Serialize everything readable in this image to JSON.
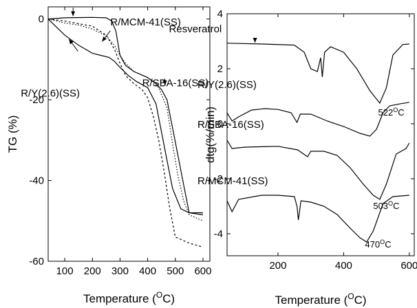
{
  "chart_data": [
    {
      "type": "line",
      "xlabel": "Temperature (",
      "xlabel_unit": "C)",
      "xlabel_sup": "O",
      "ylabel": "TG (%)",
      "xlim": [
        40,
        625
      ],
      "ylim": [
        -60,
        3
      ],
      "x_ticks": [
        100,
        200,
        300,
        400,
        500,
        600
      ],
      "y_ticks": [
        0,
        -20,
        -40,
        -60
      ],
      "series": [
        {
          "name": "Resveratrol",
          "style": "solid",
          "points": [
            [
              40,
              0
            ],
            [
              100,
              0.3
            ],
            [
              200,
              0.4
            ],
            [
              250,
              0.3
            ],
            [
              270,
              -0.5
            ],
            [
              285,
              -3
            ],
            [
              300,
              -9
            ],
            [
              320,
              -11.5
            ],
            [
              350,
              -13
            ],
            [
              400,
              -14.5
            ],
            [
              430,
              -16
            ],
            [
              450,
              -17.5
            ],
            [
              470,
              -20
            ],
            [
              490,
              -27
            ],
            [
              510,
              -34
            ],
            [
              530,
              -41
            ],
            [
              550,
              -48
            ],
            [
              600,
              -48.5
            ]
          ]
        },
        {
          "name": "R/MCM-41(SS)",
          "style": "dotted",
          "points": [
            [
              40,
              0
            ],
            [
              100,
              -1
            ],
            [
              150,
              -1.5
            ],
            [
              200,
              -2.5
            ],
            [
              250,
              -4.2
            ],
            [
              280,
              -6.5
            ],
            [
              300,
              -9
            ],
            [
              320,
              -11
            ],
            [
              350,
              -13
            ],
            [
              400,
              -14.5
            ],
            [
              440,
              -17
            ],
            [
              470,
              -22
            ],
            [
              490,
              -31
            ],
            [
              510,
              -39
            ],
            [
              530,
              -45
            ],
            [
              550,
              -48.5
            ],
            [
              600,
              -50
            ]
          ]
        },
        {
          "name": "R/SBA-16(SS)",
          "style": "dashed",
          "points": [
            [
              40,
              0
            ],
            [
              100,
              -0.5
            ],
            [
              200,
              -1.8
            ],
            [
              250,
              -4
            ],
            [
              280,
              -7.5
            ],
            [
              300,
              -11
            ],
            [
              320,
              -14
            ],
            [
              350,
              -16
            ],
            [
              380,
              -17.5
            ],
            [
              400,
              -19.5
            ],
            [
              420,
              -24
            ],
            [
              440,
              -30
            ],
            [
              460,
              -38
            ],
            [
              480,
              -47
            ],
            [
              500,
              -54
            ],
            [
              550,
              -55.5
            ],
            [
              600,
              -56.5
            ]
          ]
        },
        {
          "name": "R/Y(2.6)(SS)",
          "style": "solid",
          "points": [
            [
              40,
              0
            ],
            [
              70,
              -2
            ],
            [
              100,
              -4
            ],
            [
              150,
              -6.5
            ],
            [
              200,
              -8.5
            ],
            [
              230,
              -9
            ],
            [
              260,
              -9.5
            ],
            [
              280,
              -10.5
            ],
            [
              300,
              -12
            ],
            [
              330,
              -14
            ],
            [
              360,
              -15.5
            ],
            [
              400,
              -17
            ],
            [
              430,
              -21
            ],
            [
              450,
              -28
            ],
            [
              470,
              -35
            ],
            [
              490,
              -42
            ],
            [
              520,
              -47
            ],
            [
              550,
              -48
            ],
            [
              600,
              -48
            ]
          ]
        }
      ],
      "annotations": [
        {
          "text": "Resveratrol",
          "at": [
            130,
            0
          ]
        },
        {
          "text": "R/MCM-41(SS)",
          "at": [
            265,
            -3
          ]
        },
        {
          "text": "R/SBA-16(SS)",
          "at": [
            440,
            -18
          ]
        },
        {
          "text": "R/Y(2.6)(SS)",
          "at": [
            155,
            -8
          ]
        }
      ]
    },
    {
      "type": "line",
      "xlabel": "Temperature (",
      "xlabel_unit": "C)",
      "xlabel_sup": "O",
      "ylabel": "dtg(%/min)",
      "xlim": [
        45,
        615
      ],
      "ylim": [
        -4.8,
        4
      ],
      "x_ticks": [
        200,
        400,
        600
      ],
      "y_ticks": [
        4,
        2,
        0,
        -2,
        -4
      ],
      "series": [
        {
          "name": "Resveratrol",
          "style": "solid",
          "points": [
            [
              45,
              2.93
            ],
            [
              150,
              2.9
            ],
            [
              250,
              2.86
            ],
            [
              280,
              2.6
            ],
            [
              300,
              2.0
            ],
            [
              320,
              1.9
            ],
            [
              330,
              2.4
            ],
            [
              335,
              1.7
            ],
            [
              342,
              2.6
            ],
            [
              360,
              2.8
            ],
            [
              400,
              2.6
            ],
            [
              440,
              2.0
            ],
            [
              480,
              1.2
            ],
            [
              510,
              0.75
            ],
            [
              530,
              1.3
            ],
            [
              550,
              2.5
            ],
            [
              580,
              2.88
            ],
            [
              600,
              2.9
            ]
          ]
        },
        {
          "name": "R/Y(2.6)(SS)",
          "style": "solid",
          "points": [
            [
              45,
              0.4
            ],
            [
              60,
              0.1
            ],
            [
              80,
              0.25
            ],
            [
              120,
              0.5
            ],
            [
              160,
              0.55
            ],
            [
              200,
              0.52
            ],
            [
              240,
              0.4
            ],
            [
              258,
              0.05
            ],
            [
              268,
              0.35
            ],
            [
              300,
              0.35
            ],
            [
              350,
              0.1
            ],
            [
              400,
              -0.1
            ],
            [
              450,
              -0.35
            ],
            [
              480,
              -0.45
            ],
            [
              500,
              -0.2
            ],
            [
              520,
              0.4
            ],
            [
              540,
              0.65
            ],
            [
              570,
              0.72
            ],
            [
              600,
              0.78
            ]
          ]
        },
        {
          "name": "R/SBA-16(SS)",
          "style": "solid",
          "points": [
            [
              45,
              -0.6
            ],
            [
              60,
              -0.9
            ],
            [
              100,
              -0.85
            ],
            [
              200,
              -0.82
            ],
            [
              260,
              -0.95
            ],
            [
              290,
              -1.2
            ],
            [
              300,
              -1.0
            ],
            [
              340,
              -1.0
            ],
            [
              380,
              -1.15
            ],
            [
              420,
              -1.6
            ],
            [
              460,
              -2.2
            ],
            [
              490,
              -2.6
            ],
            [
              510,
              -2.75
            ],
            [
              530,
              -2.2
            ],
            [
              560,
              -1.1
            ],
            [
              590,
              -0.9
            ],
            [
              600,
              -0.7
            ]
          ]
        },
        {
          "name": "R/MCM-41(SS)",
          "style": "solid",
          "points": [
            [
              45,
              -2.8
            ],
            [
              60,
              -3.2
            ],
            [
              80,
              -2.75
            ],
            [
              150,
              -2.6
            ],
            [
              200,
              -2.6
            ],
            [
              250,
              -2.65
            ],
            [
              258,
              -3.0
            ],
            [
              262,
              -3.5
            ],
            [
              270,
              -2.8
            ],
            [
              300,
              -2.85
            ],
            [
              340,
              -3.0
            ],
            [
              380,
              -3.3
            ],
            [
              420,
              -3.8
            ],
            [
              450,
              -4.15
            ],
            [
              470,
              -4.3
            ],
            [
              490,
              -3.9
            ],
            [
              520,
              -2.9
            ],
            [
              550,
              -2.65
            ],
            [
              600,
              -2.6
            ]
          ]
        }
      ],
      "annotations": [
        {
          "text": "Resveratrol",
          "at": [
            130,
            3.2
          ]
        },
        {
          "text": "R/Y(2.6)(SS)",
          "at": [
            45,
            1.2
          ]
        },
        {
          "text": "R/SBA-16(SS)",
          "at": [
            45,
            -0.25
          ]
        },
        {
          "text": "R/MCM-41(SS)",
          "at": [
            45,
            -2.3
          ]
        },
        {
          "text": "522",
          "sup": "O",
          "unit": "C",
          "at": [
            505,
            0.3
          ]
        },
        {
          "text": "503",
          "sup": "O",
          "unit": "C",
          "at": [
            490,
            -3.1
          ]
        },
        {
          "text": "470",
          "sup": "O",
          "unit": "C",
          "at": [
            465,
            -4.5
          ]
        }
      ]
    }
  ]
}
